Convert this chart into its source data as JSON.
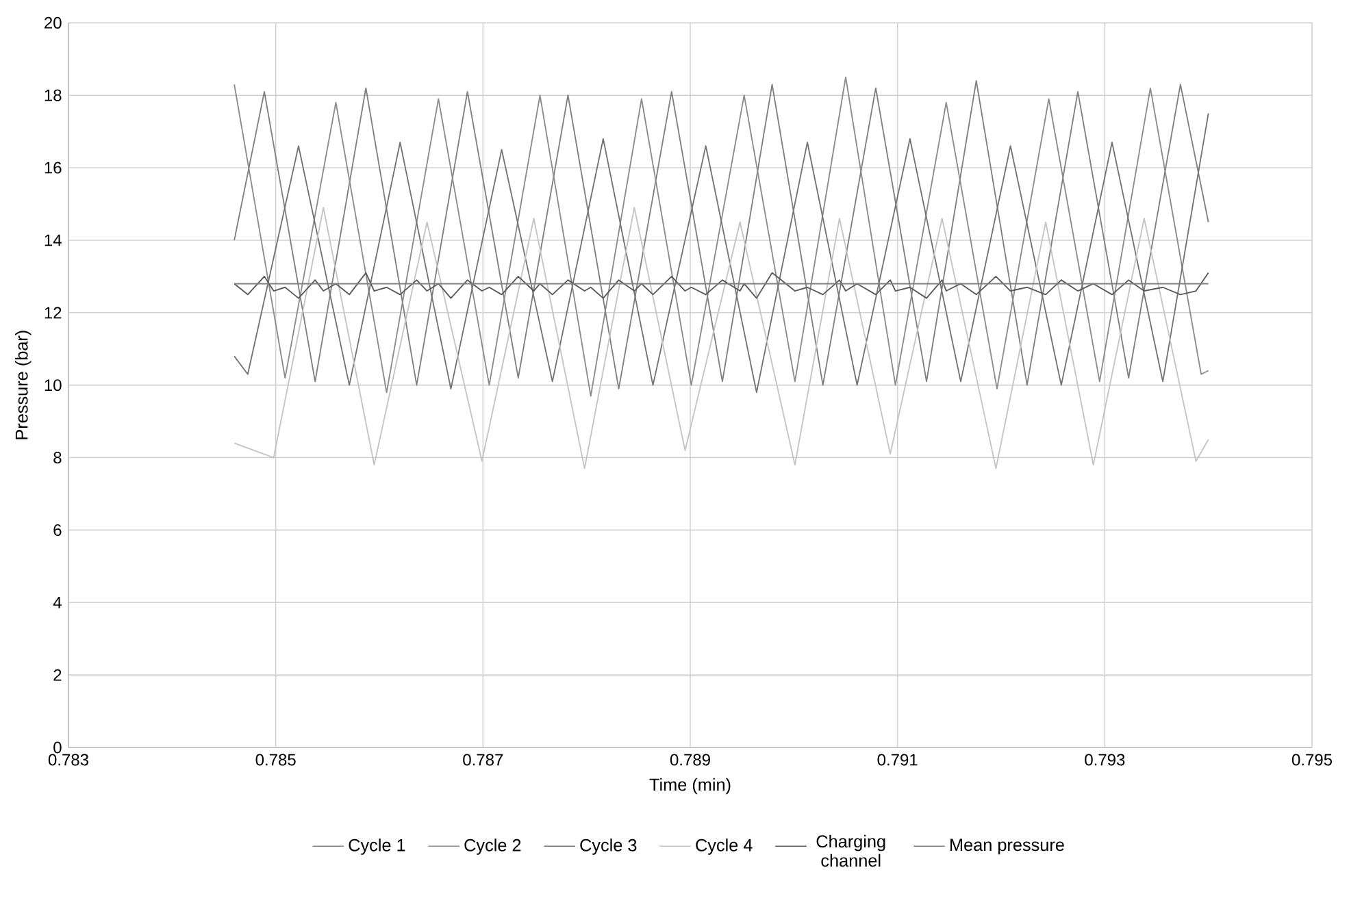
{
  "chart_data": {
    "type": "line",
    "xlabel": "Time (min)",
    "ylabel": "Pressure (bar)",
    "xlim": [
      0.783,
      0.795
    ],
    "xticks": [
      0.783,
      0.785,
      0.787,
      0.789,
      0.791,
      0.793,
      0.795
    ],
    "ylim": [
      0,
      20
    ],
    "yticks": [
      0,
      2,
      4,
      6,
      8,
      10,
      12,
      14,
      16,
      18,
      20
    ],
    "grid": true,
    "legend": "bottom",
    "series": [
      {
        "name": "Cycle 1",
        "color": "#808080",
        "x": [
          0.7846,
          0.78489,
          0.78538,
          0.78587,
          0.78636,
          0.78685,
          0.78734,
          0.78782,
          0.78831,
          0.78882,
          0.78931,
          0.78979,
          0.79028,
          0.79079,
          0.79128,
          0.79176,
          0.79225,
          0.79274,
          0.79323,
          0.79373,
          0.794
        ],
        "values": [
          14.0,
          18.1,
          10.1,
          18.2,
          10.0,
          18.1,
          10.2,
          18.0,
          9.9,
          18.1,
          10.1,
          18.3,
          10.0,
          18.2,
          10.1,
          18.4,
          10.0,
          18.1,
          10.2,
          18.3,
          14.5
        ]
      },
      {
        "name": "Cycle 2",
        "color": "#8c8c8c",
        "x": [
          0.7846,
          0.78509,
          0.78558,
          0.78607,
          0.78657,
          0.78706,
          0.78755,
          0.78804,
          0.78853,
          0.78901,
          0.78952,
          0.79001,
          0.7905,
          0.79098,
          0.79147,
          0.79196,
          0.79246,
          0.79295,
          0.79344,
          0.79393,
          0.794
        ],
        "values": [
          18.3,
          10.2,
          17.8,
          9.8,
          17.9,
          10.0,
          18.0,
          9.7,
          17.9,
          10.0,
          18.0,
          10.1,
          18.5,
          10.0,
          17.8,
          9.9,
          17.9,
          10.1,
          18.2,
          10.3,
          10.4
        ]
      },
      {
        "name": "Cycle 3",
        "color": "#747474",
        "x": [
          0.7846,
          0.78473,
          0.78522,
          0.78571,
          0.7862,
          0.78669,
          0.78718,
          0.78767,
          0.78816,
          0.78864,
          0.78915,
          0.78964,
          0.79013,
          0.79061,
          0.79112,
          0.79161,
          0.79209,
          0.79258,
          0.79307,
          0.79356,
          0.794
        ],
        "values": [
          10.8,
          10.3,
          16.6,
          10.0,
          16.7,
          9.9,
          16.5,
          10.1,
          16.8,
          10.0,
          16.6,
          9.8,
          16.7,
          10.0,
          16.8,
          10.1,
          16.6,
          10.0,
          16.7,
          10.1,
          17.5
        ]
      },
      {
        "name": "Cycle 4",
        "color": "#c4c4c4",
        "x": [
          0.7846,
          0.78498,
          0.78546,
          0.78595,
          0.78646,
          0.78699,
          0.78749,
          0.78798,
          0.78846,
          0.78895,
          0.78948,
          0.79001,
          0.79044,
          0.79093,
          0.79143,
          0.79195,
          0.79243,
          0.79289,
          0.79338,
          0.79388,
          0.794
        ],
        "values": [
          8.4,
          8.0,
          14.9,
          7.8,
          14.5,
          7.9,
          14.6,
          7.7,
          14.9,
          8.2,
          14.5,
          7.8,
          14.6,
          8.1,
          14.6,
          7.7,
          14.5,
          7.8,
          14.6,
          7.9,
          8.5
        ]
      },
      {
        "name": "Charging channel",
        "color": "#595959",
        "x": [
          0.7846,
          0.78473,
          0.78489,
          0.78498,
          0.78509,
          0.78522,
          0.78538,
          0.78546,
          0.78558,
          0.78571,
          0.78587,
          0.78595,
          0.78607,
          0.7862,
          0.78636,
          0.78646,
          0.78657,
          0.78669,
          0.78685,
          0.78699,
          0.78706,
          0.78718,
          0.78734,
          0.78749,
          0.78755,
          0.78767,
          0.78782,
          0.78798,
          0.78804,
          0.78816,
          0.78831,
          0.78846,
          0.78853,
          0.78864,
          0.78882,
          0.78895,
          0.78901,
          0.78915,
          0.78931,
          0.78948,
          0.78952,
          0.78964,
          0.78979,
          0.79001,
          0.79013,
          0.79028,
          0.79044,
          0.7905,
          0.79061,
          0.79079,
          0.79093,
          0.79098,
          0.79112,
          0.79128,
          0.79143,
          0.79147,
          0.79161,
          0.79176,
          0.79195,
          0.79209,
          0.79225,
          0.79243,
          0.79258,
          0.79274,
          0.79289,
          0.79307,
          0.79323,
          0.79338,
          0.79356,
          0.79373,
          0.79388,
          0.794
        ],
        "values": [
          12.8,
          12.5,
          13.0,
          12.6,
          12.7,
          12.4,
          12.9,
          12.6,
          12.8,
          12.5,
          13.1,
          12.6,
          12.7,
          12.5,
          12.9,
          12.6,
          12.8,
          12.4,
          12.9,
          12.6,
          12.7,
          12.5,
          13.0,
          12.6,
          12.8,
          12.5,
          12.9,
          12.6,
          12.7,
          12.4,
          12.9,
          12.6,
          12.8,
          12.5,
          13.0,
          12.6,
          12.7,
          12.5,
          12.9,
          12.6,
          12.8,
          12.4,
          13.1,
          12.6,
          12.7,
          12.5,
          12.9,
          12.6,
          12.8,
          12.5,
          12.9,
          12.6,
          12.7,
          12.4,
          12.9,
          12.6,
          12.8,
          12.5,
          13.0,
          12.6,
          12.7,
          12.5,
          12.9,
          12.6,
          12.8,
          12.5,
          12.9,
          12.6,
          12.7,
          12.5,
          12.6,
          13.1
        ]
      },
      {
        "name": "Mean pressure",
        "color": "#7f7f7f",
        "x": [
          0.7846,
          0.794
        ],
        "values": [
          12.8,
          12.8
        ]
      }
    ]
  }
}
